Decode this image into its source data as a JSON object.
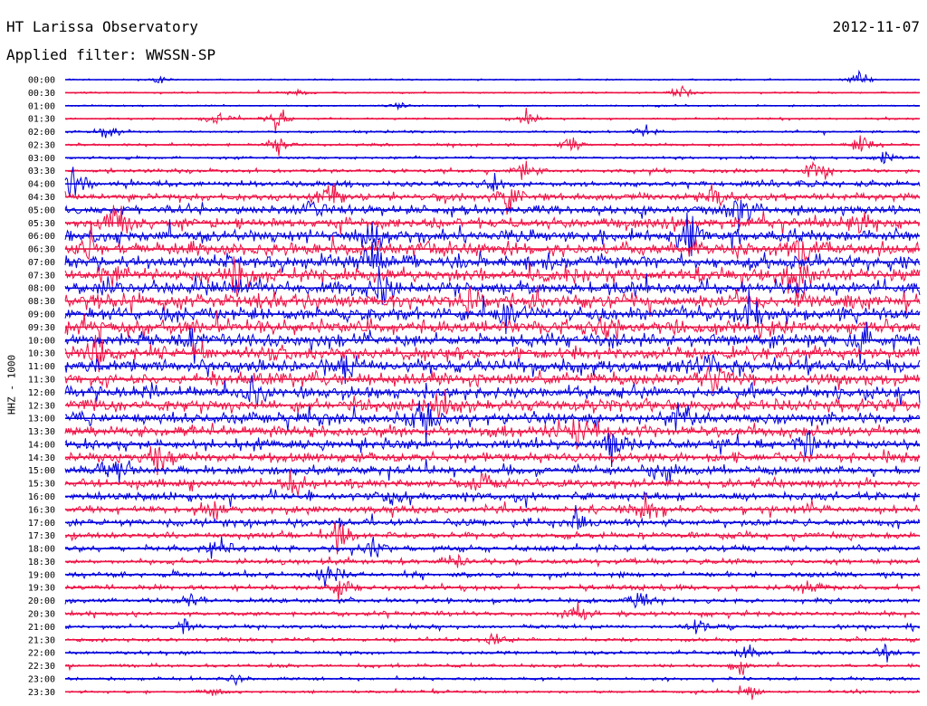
{
  "header": {
    "title": "HT Larissa Observatory",
    "date": "2012-11-07",
    "filter": "Applied filter: WWSSN-SP"
  },
  "chart_data": {
    "type": "line",
    "title": "HT Larissa Observatory",
    "ylabel": "HHZ - 1000",
    "colors": [
      "#0000dd",
      "#ee1144"
    ],
    "rows": [
      "00:00",
      "00:30",
      "01:00",
      "01:30",
      "02:00",
      "02:30",
      "03:00",
      "03:30",
      "04:00",
      "04:30",
      "05:00",
      "05:30",
      "06:00",
      "06:30",
      "07:00",
      "07:30",
      "08:00",
      "08:30",
      "09:00",
      "09:30",
      "10:00",
      "10:30",
      "11:00",
      "11:30",
      "12:00",
      "12:30",
      "13:00",
      "13:30",
      "14:00",
      "14:30",
      "15:00",
      "15:30",
      "16:00",
      "16:30",
      "17:00",
      "17:30",
      "18:00",
      "18:30",
      "19:00",
      "19:30",
      "20:00",
      "20:30",
      "21:00",
      "21:30",
      "22:00",
      "22:30",
      "23:00",
      "23:30"
    ],
    "noise_level": [
      0.5,
      0.6,
      0.6,
      0.7,
      0.8,
      1.0,
      1.0,
      1.4,
      2.0,
      2.6,
      3.2,
      3.8,
      4.4,
      4.8,
      5.0,
      5.0,
      5.0,
      5.0,
      5.0,
      4.9,
      4.8,
      4.8,
      4.7,
      4.6,
      4.5,
      4.4,
      4.2,
      4.0,
      3.8,
      3.6,
      3.4,
      3.2,
      3.0,
      2.8,
      2.6,
      2.4,
      2.2,
      2.0,
      1.9,
      1.8,
      1.7,
      1.6,
      1.5,
      1.4,
      1.3,
      1.2,
      1.1,
      1.0
    ],
    "events": [
      {
        "row": 0,
        "t": 0.93,
        "amp": 12
      },
      {
        "row": 0,
        "t": 0.11,
        "amp": 4
      },
      {
        "row": 1,
        "t": 0.72,
        "amp": 7
      },
      {
        "row": 1,
        "t": 0.27,
        "amp": 3
      },
      {
        "row": 2,
        "t": 0.39,
        "amp": 5
      },
      {
        "row": 3,
        "t": 0.18,
        "amp": 9
      },
      {
        "row": 3,
        "t": 0.54,
        "amp": 11
      },
      {
        "row": 3,
        "t": 0.25,
        "amp": 14
      },
      {
        "row": 4,
        "t": 0.05,
        "amp": 10
      },
      {
        "row": 4,
        "t": 0.68,
        "amp": 5
      },
      {
        "row": 5,
        "t": 0.25,
        "amp": 11
      },
      {
        "row": 5,
        "t": 0.93,
        "amp": 12
      },
      {
        "row": 5,
        "t": 0.59,
        "amp": 7
      },
      {
        "row": 6,
        "t": 0.96,
        "amp": 8
      },
      {
        "row": 7,
        "t": 0.88,
        "amp": 13
      },
      {
        "row": 7,
        "t": 0.54,
        "amp": 16
      },
      {
        "row": 8,
        "t": 0.01,
        "amp": 22
      },
      {
        "row": 8,
        "t": 0.5,
        "amp": 10
      },
      {
        "row": 9,
        "t": 0.52,
        "amp": 16
      },
      {
        "row": 9,
        "t": 0.76,
        "amp": 15
      },
      {
        "row": 9,
        "t": 0.31,
        "amp": 18
      },
      {
        "row": 10,
        "t": 0.29,
        "amp": 14
      },
      {
        "row": 10,
        "t": 0.79,
        "amp": 18
      },
      {
        "row": 11,
        "t": 0.06,
        "amp": 20
      },
      {
        "row": 11,
        "t": 0.93,
        "amp": 16
      },
      {
        "row": 12,
        "t": 0.36,
        "amp": 20
      },
      {
        "row": 12,
        "t": 0.73,
        "amp": 20
      },
      {
        "row": 13,
        "t": 0.03,
        "amp": 18
      },
      {
        "row": 13,
        "t": 0.86,
        "amp": 17
      },
      {
        "row": 14,
        "t": 0.36,
        "amp": 18
      },
      {
        "row": 15,
        "t": 0.86,
        "amp": 20
      },
      {
        "row": 15,
        "t": 0.2,
        "amp": 17
      },
      {
        "row": 16,
        "t": 0.37,
        "amp": 16
      },
      {
        "row": 17,
        "t": 0.47,
        "amp": 17
      },
      {
        "row": 18,
        "t": 0.52,
        "amp": 15
      },
      {
        "row": 18,
        "t": 0.8,
        "amp": 18
      },
      {
        "row": 19,
        "t": 0.63,
        "amp": 15
      },
      {
        "row": 20,
        "t": 0.15,
        "amp": 16
      },
      {
        "row": 20,
        "t": 0.93,
        "amp": 18
      },
      {
        "row": 21,
        "t": 0.04,
        "amp": 17
      },
      {
        "row": 22,
        "t": 0.33,
        "amp": 17
      },
      {
        "row": 22,
        "t": 0.75,
        "amp": 15
      },
      {
        "row": 23,
        "t": 0.76,
        "amp": 17
      },
      {
        "row": 24,
        "t": 0.22,
        "amp": 14
      },
      {
        "row": 25,
        "t": 0.44,
        "amp": 16
      },
      {
        "row": 26,
        "t": 0.42,
        "amp": 17
      },
      {
        "row": 26,
        "t": 0.72,
        "amp": 18
      },
      {
        "row": 27,
        "t": 0.6,
        "amp": 15
      },
      {
        "row": 28,
        "t": 0.64,
        "amp": 18
      },
      {
        "row": 28,
        "t": 0.87,
        "amp": 15
      },
      {
        "row": 29,
        "t": 0.11,
        "amp": 15
      },
      {
        "row": 30,
        "t": 0.7,
        "amp": 18
      },
      {
        "row": 30,
        "t": 0.06,
        "amp": 15
      },
      {
        "row": 31,
        "t": 0.27,
        "amp": 12
      },
      {
        "row": 31,
        "t": 0.49,
        "amp": 15
      },
      {
        "row": 32,
        "t": 0.38,
        "amp": 14
      },
      {
        "row": 33,
        "t": 0.68,
        "amp": 15
      },
      {
        "row": 33,
        "t": 0.17,
        "amp": 14
      },
      {
        "row": 34,
        "t": 0.6,
        "amp": 12
      },
      {
        "row": 35,
        "t": 0.32,
        "amp": 17
      },
      {
        "row": 36,
        "t": 0.18,
        "amp": 15
      },
      {
        "row": 36,
        "t": 0.36,
        "amp": 14
      },
      {
        "row": 37,
        "t": 0.46,
        "amp": 11
      },
      {
        "row": 38,
        "t": 0.31,
        "amp": 16
      },
      {
        "row": 39,
        "t": 0.32,
        "amp": 13
      },
      {
        "row": 39,
        "t": 0.87,
        "amp": 9
      },
      {
        "row": 40,
        "t": 0.15,
        "amp": 11
      },
      {
        "row": 40,
        "t": 0.67,
        "amp": 11
      },
      {
        "row": 41,
        "t": 0.6,
        "amp": 9
      },
      {
        "row": 42,
        "t": 0.14,
        "amp": 9
      },
      {
        "row": 42,
        "t": 0.74,
        "amp": 8
      },
      {
        "row": 43,
        "t": 0.5,
        "amp": 7
      },
      {
        "row": 44,
        "t": 0.8,
        "amp": 8
      },
      {
        "row": 44,
        "t": 0.96,
        "amp": 8
      },
      {
        "row": 45,
        "t": 0.79,
        "amp": 9
      },
      {
        "row": 46,
        "t": 0.2,
        "amp": 6
      },
      {
        "row": 47,
        "t": 0.8,
        "amp": 9
      },
      {
        "row": 47,
        "t": 0.17,
        "amp": 5
      }
    ]
  }
}
